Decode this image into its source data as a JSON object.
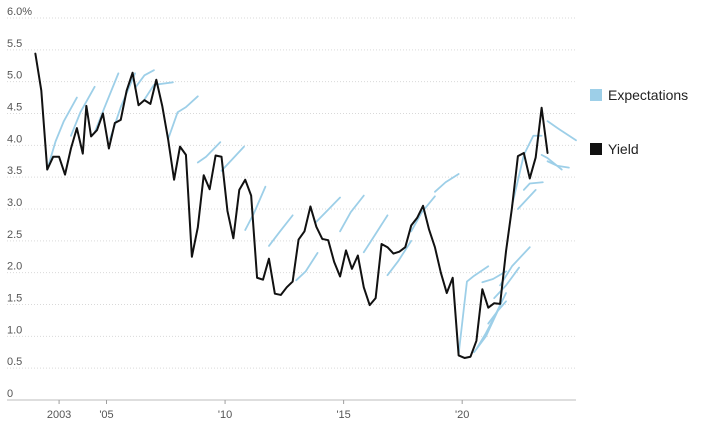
{
  "chart_data": {
    "type": "line",
    "title": "",
    "xlabel": "",
    "ylabel": "",
    "xlim": [
      2001.9,
      2024.8
    ],
    "ylim": [
      0,
      6.0
    ],
    "x_ticks": [
      {
        "value": 2003,
        "label": "2003"
      },
      {
        "value": 2005,
        "label": "'05"
      },
      {
        "value": 2010,
        "label": "'10"
      },
      {
        "value": 2015,
        "label": "'15"
      },
      {
        "value": 2020,
        "label": "'20"
      }
    ],
    "y_ticks": [
      {
        "value": 6.0,
        "label": "6.0%"
      },
      {
        "value": 5.5,
        "label": "5.5"
      },
      {
        "value": 5.0,
        "label": "5.0"
      },
      {
        "value": 4.5,
        "label": "4.5"
      },
      {
        "value": 4.0,
        "label": "4.0"
      },
      {
        "value": 3.5,
        "label": "3.5"
      },
      {
        "value": 3.0,
        "label": "3.0"
      },
      {
        "value": 2.5,
        "label": "2.5"
      },
      {
        "value": 2.0,
        "label": "2.0"
      },
      {
        "value": 1.5,
        "label": "1.5"
      },
      {
        "value": 1.0,
        "label": "1.0"
      },
      {
        "value": 0.5,
        "label": "0.5"
      },
      {
        "value": 0,
        "label": "0"
      }
    ],
    "grid": "horizontal",
    "legend_position": "right",
    "legend": [
      {
        "label": "Expectations",
        "color": "#9dcfe8"
      },
      {
        "label": "Yield",
        "color": "#111111"
      }
    ],
    "series": [
      {
        "name": "Yield",
        "color": "#111111",
        "points": [
          [
            2002.0,
            5.44
          ],
          [
            2002.25,
            4.86
          ],
          [
            2002.5,
            3.62
          ],
          [
            2002.75,
            3.82
          ],
          [
            2003.0,
            3.82
          ],
          [
            2003.25,
            3.54
          ],
          [
            2003.5,
            3.95
          ],
          [
            2003.75,
            4.27
          ],
          [
            2004.0,
            3.87
          ],
          [
            2004.15,
            4.62
          ],
          [
            2004.35,
            4.14
          ],
          [
            2004.6,
            4.24
          ],
          [
            2004.85,
            4.5
          ],
          [
            2005.1,
            3.95
          ],
          [
            2005.35,
            4.35
          ],
          [
            2005.6,
            4.4
          ],
          [
            2005.85,
            4.86
          ],
          [
            2006.1,
            5.14
          ],
          [
            2006.35,
            4.63
          ],
          [
            2006.6,
            4.71
          ],
          [
            2006.85,
            4.65
          ],
          [
            2007.1,
            5.03
          ],
          [
            2007.35,
            4.62
          ],
          [
            2007.6,
            4.09
          ],
          [
            2007.85,
            3.46
          ],
          [
            2008.1,
            3.98
          ],
          [
            2008.35,
            3.85
          ],
          [
            2008.6,
            2.25
          ],
          [
            2008.85,
            2.71
          ],
          [
            2009.1,
            3.53
          ],
          [
            2009.35,
            3.31
          ],
          [
            2009.6,
            3.84
          ],
          [
            2009.85,
            3.82
          ],
          [
            2010.1,
            2.97
          ],
          [
            2010.35,
            2.54
          ],
          [
            2010.6,
            3.3
          ],
          [
            2010.85,
            3.46
          ],
          [
            2011.1,
            3.21
          ],
          [
            2011.35,
            1.92
          ],
          [
            2011.6,
            1.89
          ],
          [
            2011.85,
            2.22
          ],
          [
            2012.1,
            1.67
          ],
          [
            2012.35,
            1.65
          ],
          [
            2012.6,
            1.77
          ],
          [
            2012.85,
            1.86
          ],
          [
            2013.1,
            2.52
          ],
          [
            2013.35,
            2.65
          ],
          [
            2013.6,
            3.04
          ],
          [
            2013.85,
            2.72
          ],
          [
            2014.1,
            2.53
          ],
          [
            2014.35,
            2.51
          ],
          [
            2014.6,
            2.17
          ],
          [
            2014.85,
            1.94
          ],
          [
            2015.1,
            2.35
          ],
          [
            2015.35,
            2.06
          ],
          [
            2015.6,
            2.27
          ],
          [
            2015.85,
            1.77
          ],
          [
            2016.1,
            1.49
          ],
          [
            2016.35,
            1.6
          ],
          [
            2016.6,
            2.45
          ],
          [
            2016.85,
            2.4
          ],
          [
            2017.1,
            2.3
          ],
          [
            2017.35,
            2.33
          ],
          [
            2017.6,
            2.4
          ],
          [
            2017.85,
            2.74
          ],
          [
            2018.1,
            2.86
          ],
          [
            2018.35,
            3.05
          ],
          [
            2018.6,
            2.68
          ],
          [
            2018.85,
            2.4
          ],
          [
            2019.1,
            2.0
          ],
          [
            2019.35,
            1.68
          ],
          [
            2019.6,
            1.92
          ],
          [
            2019.85,
            0.7
          ],
          [
            2020.1,
            0.66
          ],
          [
            2020.35,
            0.68
          ],
          [
            2020.6,
            0.93
          ],
          [
            2020.85,
            1.74
          ],
          [
            2021.1,
            1.45
          ],
          [
            2021.35,
            1.52
          ],
          [
            2021.6,
            1.51
          ],
          [
            2021.85,
            2.34
          ],
          [
            2022.1,
            3.02
          ],
          [
            2022.35,
            3.83
          ],
          [
            2022.6,
            3.88
          ],
          [
            2022.85,
            3.48
          ],
          [
            2023.1,
            3.81
          ],
          [
            2023.35,
            4.59
          ],
          [
            2023.6,
            3.88
          ]
        ]
      },
      {
        "name": "Expectations",
        "color": "#9dcfe8",
        "segments": [
          [
            [
              2002.5,
              3.62
            ],
            [
              2002.85,
              4.06
            ],
            [
              2003.2,
              4.38
            ],
            [
              2003.75,
              4.75
            ]
          ],
          [
            [
              2003.5,
              4.15
            ],
            [
              2003.9,
              4.52
            ],
            [
              2004.5,
              4.92
            ]
          ],
          [
            [
              2004.5,
              4.2
            ],
            [
              2004.9,
              4.58
            ],
            [
              2005.5,
              5.13
            ]
          ],
          [
            [
              2005.15,
              4.1
            ],
            [
              2005.6,
              4.6
            ],
            [
              2006.2,
              5.13
            ]
          ],
          [
            [
              2006.2,
              4.9
            ],
            [
              2006.6,
              5.1
            ],
            [
              2007.0,
              5.18
            ]
          ],
          [
            [
              2006.6,
              4.72
            ],
            [
              2007.0,
              4.95
            ],
            [
              2007.8,
              4.99
            ]
          ],
          [
            [
              2007.6,
              4.1
            ],
            [
              2008.0,
              4.52
            ],
            [
              2008.35,
              4.6
            ],
            [
              2008.85,
              4.77
            ]
          ],
          [
            [
              2008.85,
              3.73
            ],
            [
              2009.2,
              3.82
            ],
            [
              2009.8,
              4.05
            ]
          ],
          [
            [
              2009.85,
              3.6
            ],
            [
              2010.3,
              3.78
            ],
            [
              2010.8,
              3.98
            ]
          ],
          [
            [
              2010.85,
              2.67
            ],
            [
              2011.2,
              2.92
            ],
            [
              2011.7,
              3.35
            ]
          ],
          [
            [
              2011.85,
              2.42
            ],
            [
              2012.3,
              2.64
            ],
            [
              2012.85,
              2.9
            ]
          ],
          [
            [
              2013.0,
              1.88
            ],
            [
              2013.4,
              2.02
            ],
            [
              2013.9,
              2.31
            ]
          ],
          [
            [
              2013.85,
              2.8
            ],
            [
              2014.3,
              2.97
            ],
            [
              2014.85,
              3.18
            ]
          ],
          [
            [
              2014.85,
              2.65
            ],
            [
              2015.3,
              2.95
            ],
            [
              2015.85,
              3.21
            ]
          ],
          [
            [
              2015.85,
              2.32
            ],
            [
              2016.3,
              2.58
            ],
            [
              2016.85,
              2.9
            ]
          ],
          [
            [
              2016.85,
              1.96
            ],
            [
              2017.3,
              2.18
            ],
            [
              2017.85,
              2.5
            ]
          ],
          [
            [
              2017.85,
              2.65
            ],
            [
              2018.3,
              2.95
            ],
            [
              2018.85,
              3.2
            ]
          ],
          [
            [
              2018.85,
              3.27
            ],
            [
              2019.3,
              3.42
            ],
            [
              2019.85,
              3.55
            ]
          ],
          [
            [
              2019.85,
              0.72
            ],
            [
              2020.2,
              1.86
            ],
            [
              2020.5,
              1.95
            ],
            [
              2021.1,
              2.1
            ]
          ],
          [
            [
              2020.5,
              0.75
            ],
            [
              2021.0,
              1.0
            ],
            [
              2021.5,
              1.4
            ]
          ],
          [
            [
              2020.6,
              0.8
            ],
            [
              2021.0,
              1.05
            ],
            [
              2021.35,
              1.3
            ],
            [
              2021.85,
              1.68
            ]
          ],
          [
            [
              2021.1,
              1.2
            ],
            [
              2021.5,
              1.4
            ],
            [
              2021.85,
              1.55
            ]
          ],
          [
            [
              2020.85,
              1.85
            ],
            [
              2021.3,
              1.9
            ],
            [
              2021.85,
              2.02
            ]
          ],
          [
            [
              2021.35,
              1.6
            ],
            [
              2021.85,
              1.8
            ],
            [
              2022.4,
              2.08
            ]
          ],
          [
            [
              2021.6,
              1.8
            ],
            [
              2022.1,
              2.1
            ],
            [
              2022.85,
              2.4
            ]
          ],
          [
            [
              2022.35,
              3.0
            ],
            [
              2022.85,
              3.2
            ],
            [
              2023.1,
              3.3
            ]
          ],
          [
            [
              2022.6,
              3.3
            ],
            [
              2022.85,
              3.4
            ],
            [
              2023.4,
              3.42
            ]
          ],
          [
            [
              2022.1,
              3.05
            ],
            [
              2022.6,
              3.85
            ],
            [
              2023.0,
              4.15
            ],
            [
              2023.35,
              4.15
            ]
          ],
          [
            [
              2023.35,
              3.85
            ],
            [
              2023.6,
              3.8
            ],
            [
              2024.2,
              3.62
            ]
          ],
          [
            [
              2023.6,
              3.75
            ],
            [
              2024.0,
              3.68
            ],
            [
              2024.5,
              3.65
            ]
          ],
          [
            [
              2023.6,
              4.38
            ],
            [
              2024.1,
              4.25
            ],
            [
              2024.8,
              4.08
            ]
          ]
        ]
      }
    ]
  }
}
